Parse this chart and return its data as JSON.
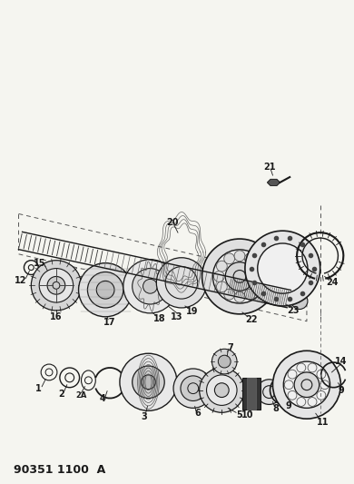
{
  "title": "90351 1100  A",
  "bg_color": "#f5f5f0",
  "line_color": "#1a1a1a",
  "title_fontsize": 9,
  "label_fontsize": 7,
  "fig_width": 3.9,
  "fig_height": 5.33,
  "dpi": 100
}
